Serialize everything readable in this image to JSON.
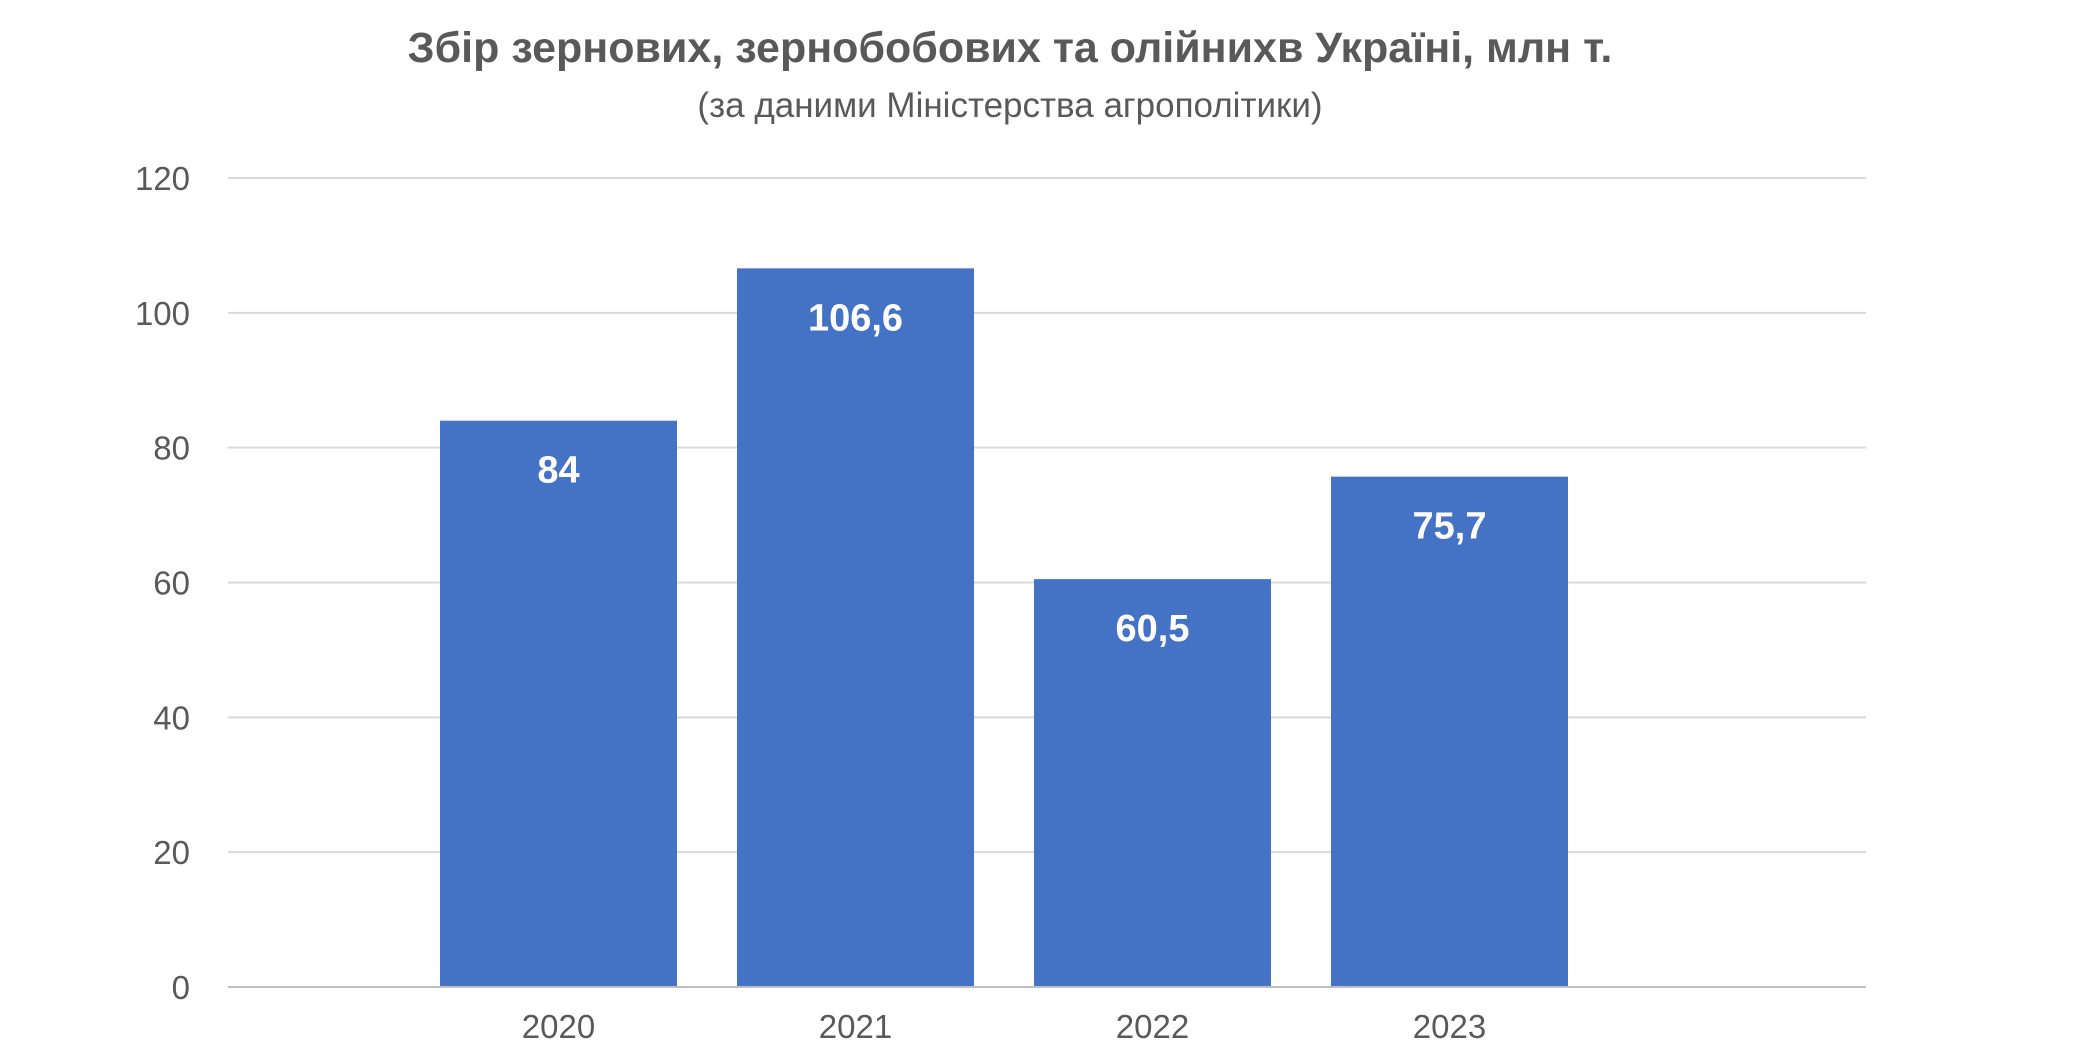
{
  "chart_data": {
    "type": "bar",
    "title": "Збір зернових, зернобобових та олійнихв Україні, млн т.",
    "subtitle": "(за даними Міністерства агрополітики)",
    "categories": [
      "2020",
      "2021",
      "2022",
      "2023"
    ],
    "values": [
      84,
      106.6,
      60.5,
      75.7
    ],
    "data_labels": [
      "84",
      "106,6",
      "60,5",
      "75,7"
    ],
    "ylim": [
      0,
      120
    ],
    "yticks": [
      0,
      20,
      40,
      60,
      80,
      100,
      120
    ],
    "grid": true,
    "legend": "none",
    "bar_color": "#4472c4"
  }
}
